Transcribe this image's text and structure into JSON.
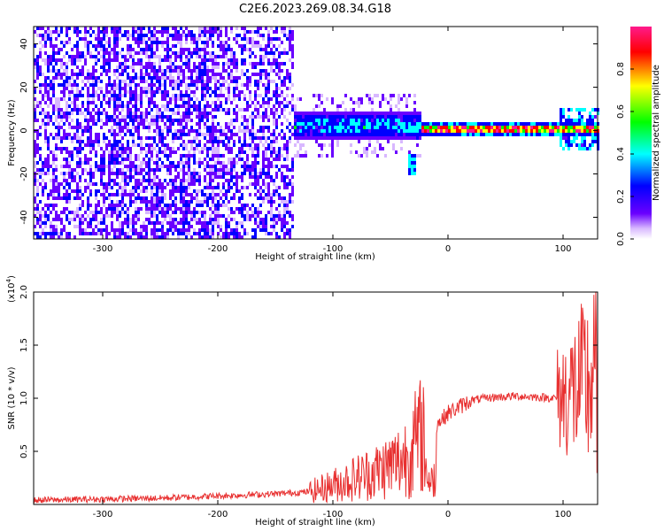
{
  "figure_title": "C2E6.2023.269.08.34.G18",
  "chart_data": [
    {
      "type": "heatmap",
      "title": "C2E6.2023.269.08.34.G18",
      "xlabel": "Height of straight line (km)",
      "ylabel": "Frequency (Hz)",
      "xlim": [
        -360,
        130
      ],
      "ylim": [
        -50,
        48
      ],
      "xticks": [
        -300,
        -200,
        -100,
        0,
        100
      ],
      "yticks": [
        -40,
        -20,
        0,
        20,
        40
      ],
      "colorbar": {
        "label": "Normalized spectral amplitude",
        "range": [
          0,
          1
        ],
        "ticks": [
          0.0,
          0.2,
          0.4,
          0.6,
          0.8
        ],
        "colors": [
          "#ffffff",
          "#d8b8ff",
          "#6a00ff",
          "#0000ff",
          "#00ffff",
          "#00ff00",
          "#ffff00",
          "#ff0000",
          "#ff1a8c"
        ]
      },
      "regions": [
        {
          "x": [
            -360,
            -135
          ],
          "description_level": "broadband noise",
          "freq_extent": [
            -50,
            48
          ],
          "amplitude": [
            0.0,
            0.15
          ]
        },
        {
          "x": [
            -135,
            -25
          ],
          "signal_center_hz": 3,
          "bandwidth_hz": 10,
          "amplitude_peak": 0.45
        },
        {
          "x": [
            -25,
            130
          ],
          "signal_center_hz": 1,
          "bandwidth_hz": 4,
          "amplitude_peak": 1.0
        }
      ]
    },
    {
      "type": "line",
      "xlabel": "Height of straight line (km)",
      "ylabel": "SNR (10 * v/v)",
      "ylabel_scale": "(x10",
      "ylabel_scale_exp": "4",
      "ylabel_scale_close": ")",
      "xlim": [
        -360,
        130
      ],
      "ylim": [
        0,
        2.0
      ],
      "xticks": [
        -300,
        -200,
        -100,
        0,
        100
      ],
      "yticks": [
        0.5,
        1.0,
        1.5,
        2.0
      ],
      "ytick_labels": [
        "0.5",
        "1.0",
        "1.5",
        "2.0"
      ],
      "series": [
        {
          "color": "#e83030",
          "x": [
            -360,
            -300,
            -250,
            -200,
            -150,
            -120,
            -100,
            -80,
            -60,
            -40,
            -30,
            -20,
            -15,
            -10,
            0,
            20,
            40,
            60,
            80,
            95,
            105,
            115,
            125,
            130
          ],
          "y": [
            0.04,
            0.05,
            0.06,
            0.08,
            0.1,
            0.12,
            0.18,
            0.25,
            0.32,
            0.42,
            0.55,
            0.7,
            0.05,
            0.75,
            0.86,
            0.98,
            1.01,
            1.02,
            1.01,
            1.0,
            1.05,
            1.1,
            1.15,
            1.2
          ]
        }
      ]
    }
  ]
}
